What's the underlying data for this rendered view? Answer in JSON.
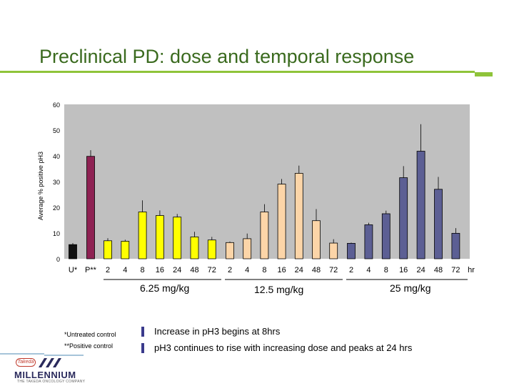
{
  "slide": {
    "title": "Preclinical PD: dose and temporal response"
  },
  "chart_data": {
    "type": "bar",
    "ylabel": "Average % positive pH3",
    "ylim": [
      0,
      60
    ],
    "yticks": [
      0,
      10,
      20,
      30,
      40,
      50,
      60
    ],
    "bar_labels": [
      "U*",
      "P**",
      "2",
      "4",
      "8",
      "16",
      "24",
      "48",
      "72",
      "2",
      "4",
      "8",
      "16",
      "24",
      "48",
      "72",
      "2",
      "4",
      "8",
      "16",
      "24",
      "48",
      "72"
    ],
    "x_unit": "hr",
    "values": [
      5.5,
      39.8,
      7.0,
      6.8,
      18.2,
      16.8,
      16.2,
      8.5,
      7.3,
      6.3,
      7.8,
      18.2,
      29.0,
      33.2,
      14.8,
      6.1,
      6.0,
      13.2,
      17.5,
      31.5,
      41.8,
      27.0,
      9.9
    ],
    "errors": [
      0.6,
      2.4,
      1.0,
      0.6,
      4.5,
      2.0,
      1.2,
      2.0,
      1.2,
      0.4,
      2.0,
      3.0,
      2.0,
      3.0,
      4.5,
      1.5,
      0.3,
      0.8,
      1.2,
      4.5,
      10.5,
      4.8,
      2.0
    ],
    "bar_colors": [
      "#111111",
      "#8e2253",
      "#ffff00",
      "#ffff00",
      "#ffff00",
      "#ffff00",
      "#ffff00",
      "#ffff00",
      "#ffff00",
      "#fcd5a8",
      "#fcd5a8",
      "#fcd5a8",
      "#fcd5a8",
      "#fcd5a8",
      "#fcd5a8",
      "#fcd5a8",
      "#5c5f94",
      "#5c5f94",
      "#5c5f94",
      "#5c5f94",
      "#5c5f94",
      "#5c5f94",
      "#5c5f94"
    ],
    "groups": [
      {
        "label": "6.25 mg/kg"
      },
      {
        "label": "12.5 mg/kg"
      },
      {
        "label": "25 mg/kg"
      }
    ],
    "plot_background": "#c0c0c0"
  },
  "notes": {
    "untreated": "*Untreated control",
    "positive": "**Positive control"
  },
  "bullets": [
    "Increase in pH3 begins at 8hrs",
    "pH3 continues to rise with increasing dose and peaks at 24 hrs"
  ],
  "logo": {
    "brand": "MILLENNIUM",
    "tagline": "THE TAKEDA ONCOLOGY COMPANY",
    "takeda": "Takeda",
    "icon": "millennium-logo-icon"
  },
  "colors": {
    "title": "#3a6a1e",
    "rule": "#8fc43a",
    "bullet": "#3b3b8c"
  }
}
